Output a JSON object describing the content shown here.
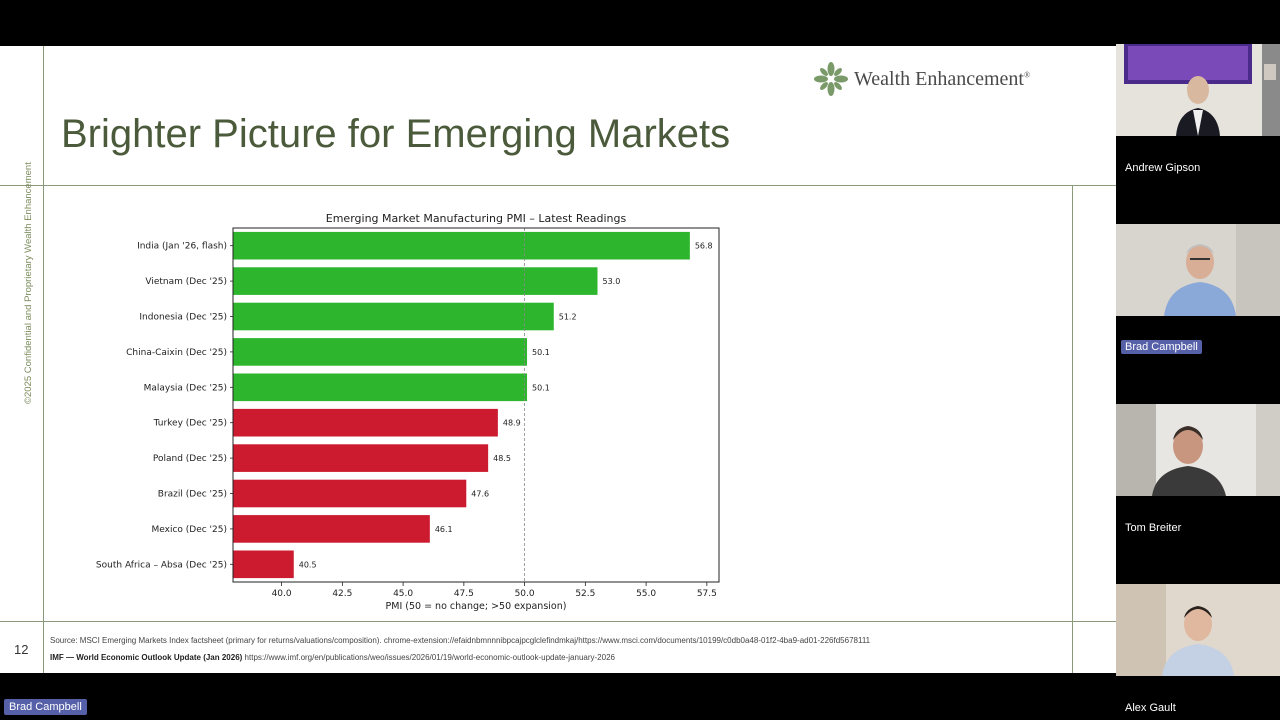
{
  "slide": {
    "title": "Brighter Picture for Emerging Markets",
    "logo_text": "Wealth Enhancement",
    "logo_mark": "®",
    "side_text": "©2025 Confidential and Proprietary Wealth Enhancement",
    "page_number": "12",
    "source_line_1": "Source: MSCI Emerging Markets Index factsheet (primary for returns/valuations/composition). chrome-extension://efaidnbmnnnibpcajpcglclefindmkaj/https://www.msci.com/documents/10199/c0db0a48-01f2-4ba9-ad01-226fd5678111",
    "source_line_2_bold": "IMF — World Economic Outlook Update (Jan 2026)",
    "source_line_2_rest": " https://www.imf.org/en/publications/weo/issues/2026/01/19/world-economic-outlook-update-january-2026"
  },
  "chart_data": {
    "type": "bar",
    "orientation": "horizontal",
    "title": "Emerging Market Manufacturing PMI – Latest Readings",
    "xlabel": "PMI (50 = no change; >50 expansion)",
    "categories": [
      "India (Jan '26, flash)",
      "Vietnam (Dec '25)",
      "Indonesia (Dec '25)",
      "China-Caixin (Dec '25)",
      "Malaysia (Dec '25)",
      "Turkey (Dec '25)",
      "Poland (Dec '25)",
      "Brazil (Dec '25)",
      "Mexico (Dec '25)",
      "South Africa – Absa (Dec '25)"
    ],
    "values": [
      56.8,
      53.0,
      51.2,
      50.1,
      50.1,
      48.9,
      48.5,
      47.6,
      46.1,
      40.5
    ],
    "value_labels": [
      "56.8",
      "53.0",
      "51.2",
      "50.1",
      "50.1",
      "48.9",
      "48.5",
      "47.6",
      "46.1",
      "40.5"
    ],
    "xlim": [
      38.0,
      58.0
    ],
    "xticks": [
      "40.0",
      "42.5",
      "45.0",
      "47.5",
      "50.0",
      "52.5",
      "55.0",
      "57.5"
    ],
    "reference_line": 50.0,
    "colors": {
      "expansion": "#2db52d",
      "contraction": "#cc1a2e"
    }
  },
  "participants": [
    {
      "name": "Andrew Gipson",
      "active": false
    },
    {
      "name": "Brad Campbell",
      "active": true
    },
    {
      "name": "Tom Breiter",
      "active": false
    },
    {
      "name": "Alex Gault",
      "active": false
    }
  ],
  "speaker_label": "Brad Campbell"
}
